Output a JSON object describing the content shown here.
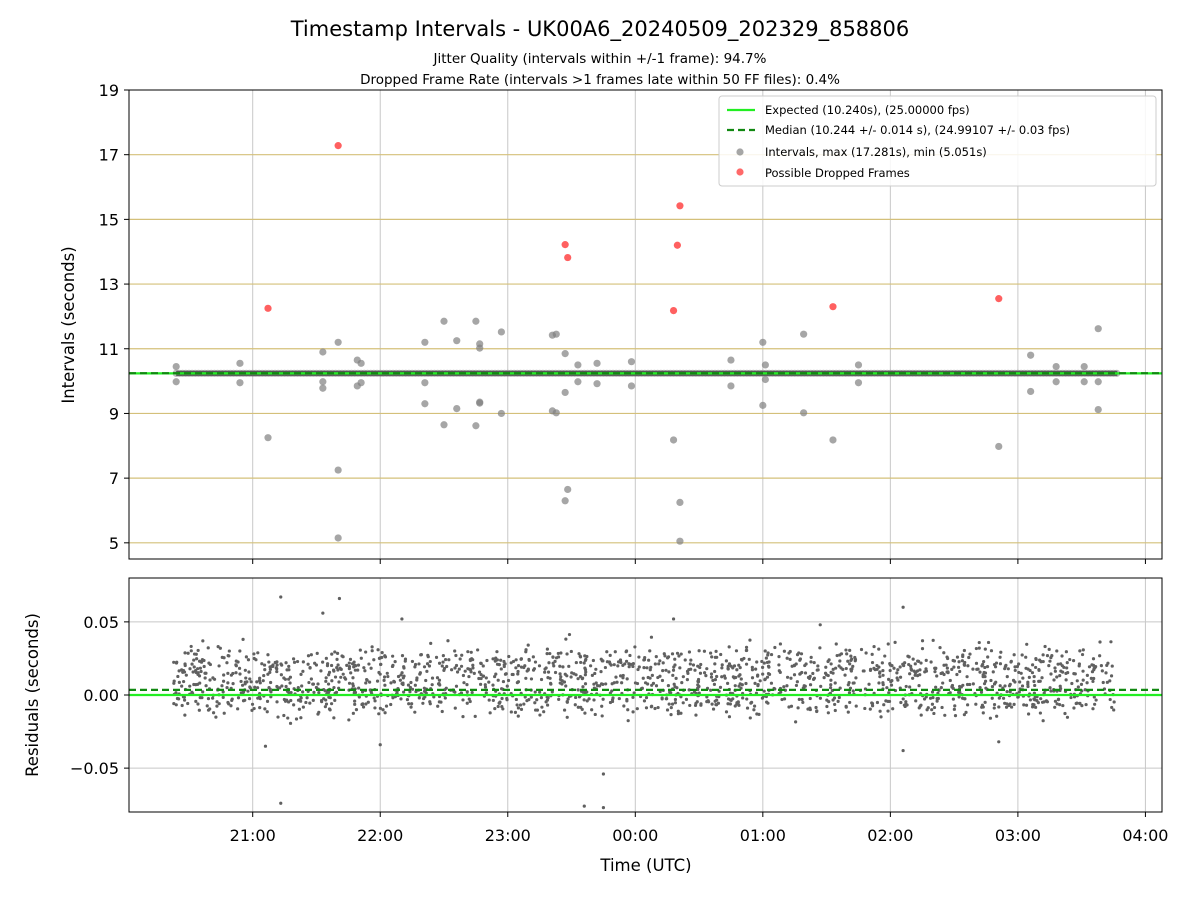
{
  "title": "Timestamp Intervals - UK00A6_20240509_202329_858806",
  "subtitle_line1": "Jitter Quality (intervals within +/-1 frame): 94.7%",
  "subtitle_line2": "Dropped Frame Rate (intervals >1 frames late within 50 FF files): 0.4%",
  "colors": {
    "expected": "#22ee22",
    "median": "#118811",
    "intervals": "#808080",
    "dropped": "#ff4444",
    "residuals": "#606060",
    "hgrid_top": "#d4c07a",
    "grid": "#c8c8c8"
  },
  "chart_data": [
    {
      "type": "scatter",
      "ylabel": "Intervals (seconds)",
      "ylim": [
        4.5,
        19
      ],
      "yticks": [
        5,
        7,
        9,
        11,
        13,
        15,
        17,
        19
      ],
      "xlim": [
        20.03,
        28.13
      ],
      "xticks": [
        21,
        22,
        23,
        24,
        25,
        26,
        27,
        28
      ],
      "grid": true,
      "legend_position": "upper right",
      "expected_value": 10.24,
      "median_value": 10.244,
      "legend": {
        "expected": "Expected (10.240s), (25.00000 fps)",
        "median": "Median (10.244 +/- 0.014 s), (24.99107 +/- 0.03 fps)",
        "intervals": "Intervals, max (17.281s), min (5.051s)",
        "dropped": "Possible Dropped Frames"
      },
      "series": [
        {
          "name": "Intervals, max (17.281s), min (5.051s)",
          "points": [
            [
              20.4,
              10.45
            ],
            [
              20.4,
              9.98
            ],
            [
              20.9,
              10.55
            ],
            [
              20.9,
              9.95
            ],
            [
              21.12,
              8.25
            ],
            [
              21.55,
              10.9
            ],
            [
              21.55,
              9.78
            ],
            [
              21.55,
              9.98
            ],
            [
              21.67,
              11.2
            ],
            [
              21.67,
              7.25
            ],
            [
              21.67,
              5.15
            ],
            [
              21.82,
              10.65
            ],
            [
              21.82,
              9.85
            ],
            [
              21.85,
              10.55
            ],
            [
              21.85,
              9.95
            ],
            [
              22.35,
              11.2
            ],
            [
              22.35,
              9.95
            ],
            [
              22.35,
              9.3
            ],
            [
              22.5,
              11.85
            ],
            [
              22.5,
              8.65
            ],
            [
              22.6,
              11.25
            ],
            [
              22.6,
              9.15
            ],
            [
              22.75,
              11.85
            ],
            [
              22.75,
              8.62
            ],
            [
              22.78,
              11.15
            ],
            [
              22.78,
              11.02
            ],
            [
              22.78,
              9.35
            ],
            [
              22.78,
              9.32
            ],
            [
              22.95,
              11.52
            ],
            [
              22.95,
              9.0
            ],
            [
              23.35,
              11.42
            ],
            [
              23.38,
              11.45
            ],
            [
              23.35,
              9.08
            ],
            [
              23.38,
              9.02
            ],
            [
              23.45,
              10.85
            ],
            [
              23.45,
              9.65
            ],
            [
              23.47,
              6.65
            ],
            [
              23.45,
              6.3
            ],
            [
              23.55,
              10.5
            ],
            [
              23.55,
              9.98
            ],
            [
              23.7,
              10.55
            ],
            [
              23.7,
              9.92
            ],
            [
              23.97,
              10.6
            ],
            [
              23.97,
              9.85
            ],
            [
              24.3,
              8.18
            ],
            [
              24.35,
              6.25
            ],
            [
              24.35,
              5.05
            ],
            [
              24.75,
              10.65
            ],
            [
              24.75,
              9.85
            ],
            [
              25.0,
              11.2
            ],
            [
              25.0,
              9.25
            ],
            [
              25.02,
              10.5
            ],
            [
              25.02,
              10.05
            ],
            [
              25.32,
              11.45
            ],
            [
              25.32,
              9.02
            ],
            [
              25.55,
              8.18
            ],
            [
              25.75,
              10.5
            ],
            [
              25.75,
              9.95
            ],
            [
              26.85,
              7.98
            ],
            [
              27.1,
              10.8
            ],
            [
              27.1,
              9.68
            ],
            [
              27.3,
              10.45
            ],
            [
              27.3,
              9.98
            ],
            [
              27.52,
              10.45
            ],
            [
              27.52,
              9.98
            ],
            [
              27.63,
              11.62
            ],
            [
              27.63,
              9.12
            ],
            [
              27.63,
              9.98
            ]
          ]
        },
        {
          "name": "Possible Dropped Frames",
          "points": [
            [
              21.12,
              12.25
            ],
            [
              21.67,
              17.28
            ],
            [
              23.45,
              14.22
            ],
            [
              23.47,
              13.82
            ],
            [
              24.3,
              12.18
            ],
            [
              24.33,
              14.2
            ],
            [
              24.35,
              15.42
            ],
            [
              25.55,
              12.3
            ],
            [
              26.85,
              12.55
            ]
          ]
        }
      ]
    },
    {
      "type": "scatter",
      "ylabel": "Residuals (seconds)",
      "xlabel": "Time (UTC)",
      "ylim": [
        -0.08,
        0.08
      ],
      "yticks": [
        0.05,
        0.0,
        -0.05
      ],
      "ytick_labels": [
        "0.05",
        "0.00",
        "−0.05"
      ],
      "xlim": [
        20.03,
        28.13
      ],
      "xticks": [
        21,
        22,
        23,
        24,
        25,
        26,
        27,
        28
      ],
      "xtick_labels": [
        "21:00",
        "22:00",
        "23:00",
        "00:00",
        "01:00",
        "02:00",
        "03:00",
        "04:00"
      ],
      "grid": true,
      "expected_value": 0.0,
      "median_value": 0.0035,
      "x_range": [
        20.38,
        27.76
      ],
      "n_points": 1800,
      "band_upper_mean": 0.0195,
      "band_lower_mean": -0.0005,
      "band_spread": 0.007,
      "outliers": [
        [
          21.22,
          0.067
        ],
        [
          21.68,
          0.066
        ],
        [
          21.55,
          0.056
        ],
        [
          22.17,
          0.052
        ],
        [
          24.3,
          0.052
        ],
        [
          25.45,
          0.048
        ],
        [
          26.1,
          0.06
        ],
        [
          21.22,
          -0.074
        ],
        [
          23.6,
          -0.076
        ],
        [
          23.75,
          -0.077
        ],
        [
          23.75,
          -0.054
        ],
        [
          21.1,
          -0.035
        ],
        [
          22.0,
          -0.034
        ],
        [
          26.1,
          -0.038
        ],
        [
          26.85,
          -0.032
        ]
      ]
    }
  ]
}
